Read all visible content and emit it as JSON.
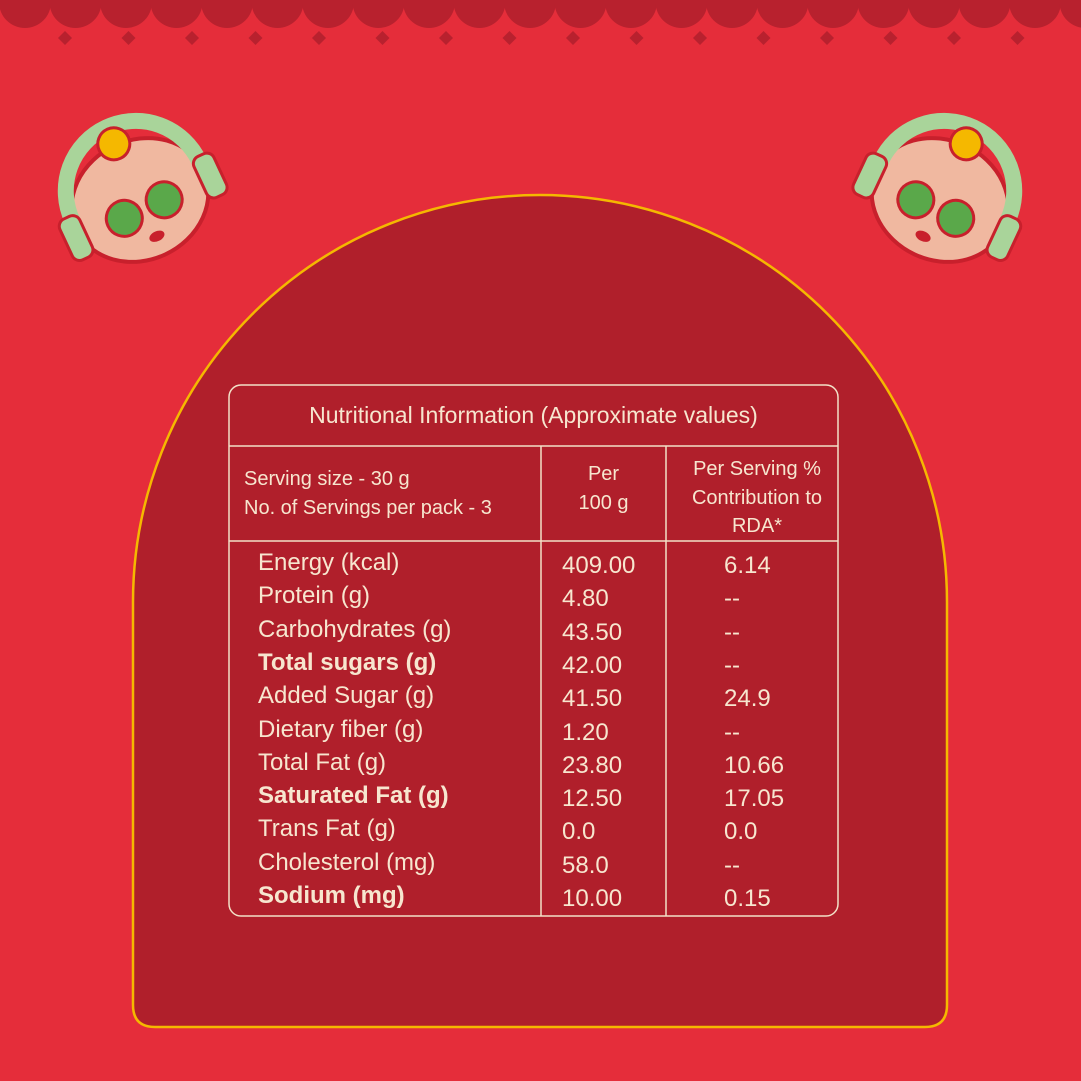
{
  "table": {
    "title": "Nutritional Information (Approximate values)",
    "header": {
      "serving": [
        "Serving size - 30 g",
        "No. of Servings per pack - 3"
      ],
      "per_100g": [
        "Per",
        "100 g"
      ],
      "rda": [
        "Per Serving %",
        "Contribution to",
        "RDA*"
      ]
    },
    "rows": [
      [
        "Energy (kcal)",
        "409.00",
        "6.14"
      ],
      [
        "Protein (g)",
        "4.80",
        "--"
      ],
      [
        "Carbohydrates (g)",
        "43.50",
        "--"
      ],
      [
        "Total sugars (g)",
        "42.00",
        "--"
      ],
      [
        "Added Sugar (g)",
        "41.50",
        "24.9"
      ],
      [
        "Dietary fiber (g)",
        "1.20",
        "--"
      ],
      [
        "Total Fat (g)",
        "23.80",
        "10.66"
      ],
      [
        "Saturated Fat (g)",
        "12.50",
        "17.05"
      ],
      [
        "Trans Fat (g)",
        "0.0",
        "0.0"
      ],
      [
        "Cholesterol (mg)",
        "58.0",
        "--"
      ],
      [
        "Sodium (mg)",
        "10.00",
        "0.15"
      ]
    ]
  }
}
